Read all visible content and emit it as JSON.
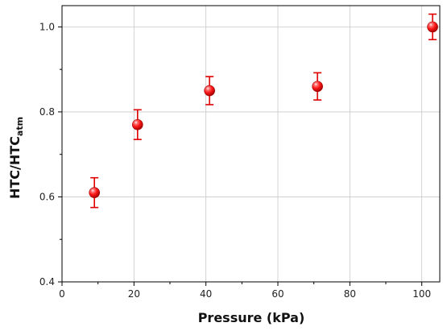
{
  "chart_data": {
    "type": "scatter",
    "xlabel": "Pressure (kPa)",
    "ylabel": {
      "main": "HTC/HTC",
      "subscript": "atm"
    },
    "xlim": [
      0,
      105
    ],
    "ylim": [
      0.4,
      1.05
    ],
    "xticks": [
      0,
      20,
      40,
      60,
      80,
      100
    ],
    "yticks": [
      0.4,
      0.6,
      0.8,
      1.0
    ],
    "xtick_labels": [
      "0",
      "20",
      "40",
      "60",
      "80",
      "100"
    ],
    "ytick_labels": [
      "0.4",
      "0.6",
      "0.8",
      "1.0"
    ],
    "grid": true,
    "series": [
      {
        "color": "#e00000",
        "points": [
          {
            "x": 9,
            "y": 0.61,
            "err": 0.035
          },
          {
            "x": 21,
            "y": 0.77,
            "err": 0.035
          },
          {
            "x": 41,
            "y": 0.85,
            "err": 0.033
          },
          {
            "x": 71,
            "y": 0.86,
            "err": 0.032
          },
          {
            "x": 103,
            "y": 1.0,
            "err": 0.03
          }
        ]
      }
    ]
  }
}
